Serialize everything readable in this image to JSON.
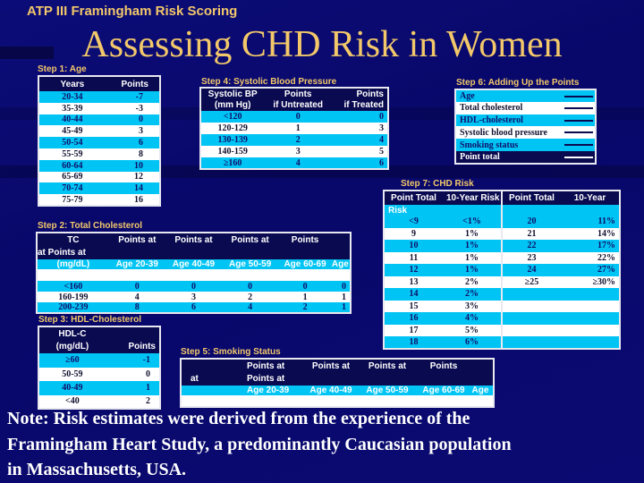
{
  "header": "ATP III Framingham Risk Scoring",
  "title": "Assessing CHD Risk in Women",
  "step1": {
    "label": "Step 1: Age",
    "headers": [
      "Years",
      "Points"
    ],
    "rows": [
      [
        "20-34",
        "-7"
      ],
      [
        "35-39",
        "-3"
      ],
      [
        "40-44",
        "0"
      ],
      [
        "45-49",
        "3"
      ],
      [
        "50-54",
        "6"
      ],
      [
        "55-59",
        "8"
      ],
      [
        "60-64",
        "10"
      ],
      [
        "65-69",
        "12"
      ],
      [
        "70-74",
        "14"
      ],
      [
        "75-79",
        "16"
      ]
    ]
  },
  "step4": {
    "label": "Step 4: Systolic Blood Pressure",
    "headers": [
      "Systolic BP (mm Hg)",
      "Points if Untreated",
      "Points if Treated"
    ],
    "h1": [
      "Systolic BP",
      "Points",
      "Points"
    ],
    "h2": [
      "(mm Hg)",
      "if Untreated",
      "if Treated"
    ],
    "rows": [
      [
        "<120",
        "0",
        "0"
      ],
      [
        "120-129",
        "1",
        "3"
      ],
      [
        "130-139",
        "2",
        "4"
      ],
      [
        "140-159",
        "3",
        "5"
      ],
      [
        "≥160",
        "4",
        "6"
      ]
    ]
  },
  "step6": {
    "label": "Step 6: Adding Up the Points",
    "rows": [
      "Age",
      "Total cholesterol",
      "HDL-cholesterol",
      "Systolic blood pressure",
      "Smoking status",
      "Point total"
    ]
  },
  "step7": {
    "label": "Step 7: CHD Risk",
    "h1": [
      "Point Total",
      "10-Year Risk",
      "Point Total",
      "10-Year"
    ],
    "h2": "Risk",
    "left": [
      [
        "<9",
        "<1%"
      ],
      [
        "9",
        "1%"
      ],
      [
        "10",
        "1%"
      ],
      [
        "11",
        "1%"
      ],
      [
        "12",
        "1%"
      ],
      [
        "13",
        "2%"
      ],
      [
        "14",
        "2%"
      ],
      [
        "15",
        "3%"
      ],
      [
        "16",
        "4%"
      ],
      [
        "17",
        "5%"
      ],
      [
        "18",
        "6%"
      ]
    ],
    "right": [
      [
        "20",
        "11%"
      ],
      [
        "21",
        "14%"
      ],
      [
        "22",
        "17%"
      ],
      [
        "23",
        "22%"
      ],
      [
        "24",
        "27%"
      ],
      [
        "≥25",
        "≥30%"
      ]
    ]
  },
  "step2": {
    "label": "Step 2: Total Cholesterol",
    "h1": [
      "TC",
      "Points at",
      "Points at",
      "Points at",
      "Points"
    ],
    "h1b": "at Points at",
    "h2": [
      "(mg/dL)",
      "Age 20-39",
      "Age 40-49",
      "Age 50-59",
      "Age 60-69",
      "Age"
    ],
    "rows": [
      [
        "<160",
        "0",
        "0",
        "0",
        "0",
        "0"
      ],
      [
        "160-199",
        "4",
        "3",
        "2",
        "1",
        "1"
      ],
      [
        "200-239",
        "8",
        "6",
        "4",
        "2",
        "1"
      ]
    ]
  },
  "step3": {
    "label": "Step 3: HDL-Cholesterol",
    "h1": "HDL-C",
    "h2": "(mg/dL)",
    "h3": "Points",
    "rows": [
      [
        "≥60",
        "-1"
      ],
      [
        "50-59",
        "0"
      ],
      [
        "40-49",
        "1"
      ],
      [
        "<40",
        "2"
      ]
    ]
  },
  "step5": {
    "label": "Step 5: Smoking Status",
    "h1": [
      "Points at",
      "Points at",
      "Points at",
      "Points"
    ],
    "h1b": [
      "at",
      "Points at"
    ],
    "h2": [
      "Age 20-39",
      "Age 40-49",
      "Age 50-59",
      "Age 60-69",
      "Age"
    ]
  },
  "note": [
    "Note: Risk estimates were derived from the experience of the",
    "Framingham Heart Study,  a predominantly Caucasian population",
    "in Massachusetts, USA."
  ]
}
